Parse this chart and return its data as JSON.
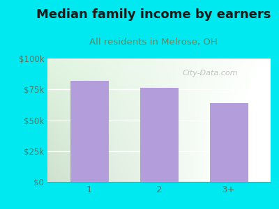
{
  "title": "Median family income by earners",
  "subtitle": "All residents in Melrose, OH",
  "categories": [
    "1",
    "2",
    "3+"
  ],
  "values": [
    82000,
    76000,
    64000
  ],
  "bar_color": "#b39ddb",
  "outer_bg": "#00e8f0",
  "title_color": "#1a1a1a",
  "subtitle_color": "#5a8a6a",
  "axis_label_color": "#4a7a6a",
  "ylim": [
    0,
    100000
  ],
  "yticks": [
    0,
    25000,
    50000,
    75000,
    100000
  ],
  "ytick_labels": [
    "$0",
    "$25k",
    "$50k",
    "$75k",
    "$100k"
  ],
  "watermark": "City-Data.com",
  "watermark_color": "#aaaaaa",
  "title_fontsize": 13,
  "subtitle_fontsize": 9.5
}
